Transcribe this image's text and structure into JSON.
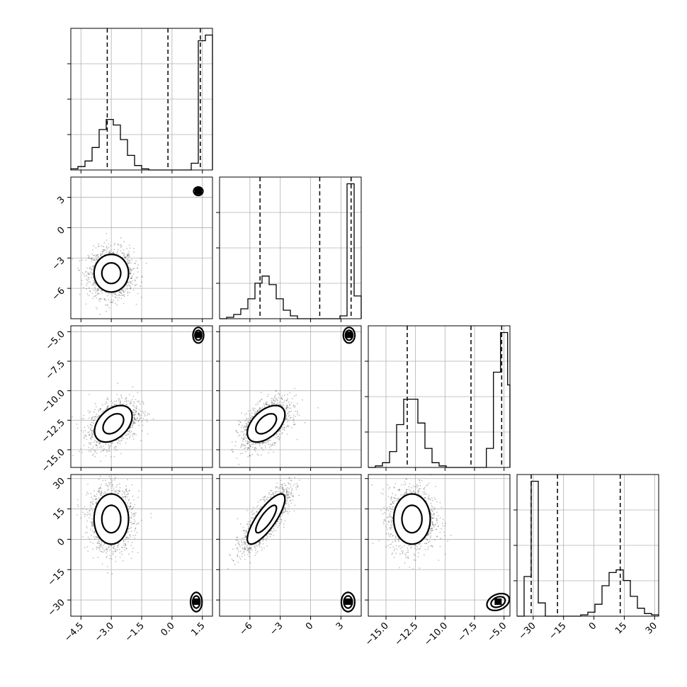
{
  "chart_data": {
    "type": "corner",
    "parameters": [
      {
        "index": 0,
        "range": [
          -5.0,
          2.0
        ],
        "ticks": [
          -4.5,
          -3.0,
          -1.5,
          0.0,
          1.5
        ],
        "tick_labels": [
          "−4.5",
          "−3.0",
          "−1.5",
          "0.0",
          "1.5"
        ],
        "quantiles": [
          -3.2,
          -0.2,
          1.4
        ]
      },
      {
        "index": 1,
        "range": [
          -9,
          5
        ],
        "ticks": [
          -6,
          -3,
          0,
          3
        ],
        "tick_labels": [
          "−6",
          "−3",
          "0",
          "3"
        ],
        "quantiles": [
          -5.0,
          0.9,
          4.0
        ]
      },
      {
        "index": 2,
        "range": [
          -16.5,
          -4.5
        ],
        "ticks": [
          -15.0,
          -12.5,
          -10.0,
          -7.5,
          -5.0
        ],
        "tick_labels": [
          "−15.0",
          "−12.5",
          "−10.0",
          "−7.5",
          "−5.0"
        ],
        "quantiles": [
          -13.2,
          -7.8,
          -5.2
        ]
      },
      {
        "index": 3,
        "range": [
          -38,
          32
        ],
        "ticks": [
          -30,
          -15,
          0,
          15,
          30
        ],
        "tick_labels": [
          "−30",
          "−15",
          "0",
          "15",
          "30"
        ],
        "quantiles": [
          -31.0,
          -18.0,
          13.0
        ]
      }
    ],
    "histograms": [
      {
        "param": 0,
        "bins": [
          -5.0,
          -4.65,
          -4.3,
          -3.95,
          -3.6,
          -3.25,
          -2.9,
          -2.55,
          -2.2,
          -1.85,
          -1.5,
          -1.15,
          -0.8,
          -0.45,
          -0.1,
          0.25,
          0.6,
          0.95,
          1.3,
          1.65,
          2.0
        ],
        "counts": [
          1,
          3,
          8,
          20,
          36,
          45,
          40,
          27,
          13,
          4,
          1,
          0,
          0,
          0,
          0,
          0,
          0,
          6,
          115,
          120
        ]
      },
      {
        "param": 1,
        "bins": [
          -9.0,
          -8.3,
          -7.6,
          -6.9,
          -6.2,
          -5.5,
          -4.8,
          -4.1,
          -3.4,
          -2.7,
          -2.0,
          -1.3,
          -0.6,
          0.1,
          0.8,
          1.5,
          2.2,
          2.9,
          3.6,
          4.3,
          5.0
        ],
        "counts": [
          0,
          1,
          3,
          7,
          14,
          25,
          30,
          24,
          14,
          6,
          2,
          0,
          0,
          0,
          0,
          0,
          0,
          2,
          95,
          16
        ]
      },
      {
        "param": 2,
        "bins": [
          -16.5,
          -15.9,
          -15.3,
          -14.7,
          -14.1,
          -13.5,
          -12.9,
          -12.3,
          -11.7,
          -11.1,
          -10.5,
          -9.9,
          -9.3,
          -8.7,
          -8.3,
          -7.1,
          -6.5,
          -5.9,
          -5.3,
          -4.7,
          -4.5
        ],
        "counts": [
          0,
          1,
          3,
          10,
          27,
          43,
          43,
          28,
          12,
          3,
          1,
          0,
          0,
          0,
          0,
          0,
          12,
          60,
          85,
          52
        ]
      },
      {
        "param": 3,
        "bins": [
          -38,
          -34.5,
          -31,
          -27.5,
          -24,
          -20.5,
          -17,
          -13.5,
          -10,
          -6.5,
          -3,
          0.5,
          4,
          7.5,
          11,
          14.5,
          18,
          21.5,
          25,
          28.5,
          32
        ],
        "counts": [
          0,
          30,
          102,
          10,
          0,
          0,
          0,
          0,
          0,
          1,
          3,
          9,
          23,
          33,
          35,
          27,
          15,
          6,
          2,
          1
        ]
      }
    ],
    "pairs": [
      {
        "x_param": 0,
        "y_param": 1,
        "modes": [
          {
            "cx": -3.0,
            "cy": -4.5,
            "sx": 0.55,
            "sy": 1.2,
            "rho": 0.0,
            "n": 1300
          },
          {
            "cx": 1.3,
            "cy": 3.6,
            "sx": 0.12,
            "sy": 0.22,
            "rho": 0.0,
            "n": 0
          }
        ]
      },
      {
        "x_param": 0,
        "y_param": 2,
        "modes": [
          {
            "cx": -2.9,
            "cy": -12.8,
            "sx": 0.6,
            "sy": 1.0,
            "rho": 0.4,
            "n": 1300
          },
          {
            "cx": 1.3,
            "cy": -5.3,
            "sx": 0.14,
            "sy": 0.35,
            "rho": 0.0,
            "n": 0
          }
        ]
      },
      {
        "x_param": 1,
        "y_param": 2,
        "modes": [
          {
            "cx": -4.4,
            "cy": -12.8,
            "sx": 1.2,
            "sy": 1.0,
            "rho": 0.5,
            "n": 1300
          },
          {
            "cx": 3.8,
            "cy": -5.3,
            "sx": 0.3,
            "sy": 0.35,
            "rho": 0.0,
            "n": 0
          }
        ]
      },
      {
        "x_param": 0,
        "y_param": 3,
        "modes": [
          {
            "cx": -3.0,
            "cy": 10.0,
            "sx": 0.55,
            "sy": 8.0,
            "rho": 0.0,
            "n": 1300
          },
          {
            "cx": 1.2,
            "cy": -31.0,
            "sx": 0.15,
            "sy": 2.5,
            "rho": 0.0,
            "n": 0
          }
        ]
      },
      {
        "x_param": 1,
        "y_param": 3,
        "modes": [
          {
            "cx": -4.4,
            "cy": 10.0,
            "sx": 1.2,
            "sy": 8.0,
            "rho": 0.8,
            "n": 1300
          },
          {
            "cx": 3.7,
            "cy": -31.0,
            "sx": 0.35,
            "sy": 2.5,
            "rho": 0.0,
            "n": 0
          }
        ]
      },
      {
        "x_param": 2,
        "y_param": 3,
        "modes": [
          {
            "cx": -12.8,
            "cy": 10.0,
            "sx": 1.0,
            "sy": 8.0,
            "rho": 0.0,
            "n": 1300
          },
          {
            "cx": -5.5,
            "cy": -31.0,
            "sx": 0.5,
            "sy": 2.2,
            "rho": 0.3,
            "n": 0
          }
        ]
      }
    ],
    "grid": true
  }
}
